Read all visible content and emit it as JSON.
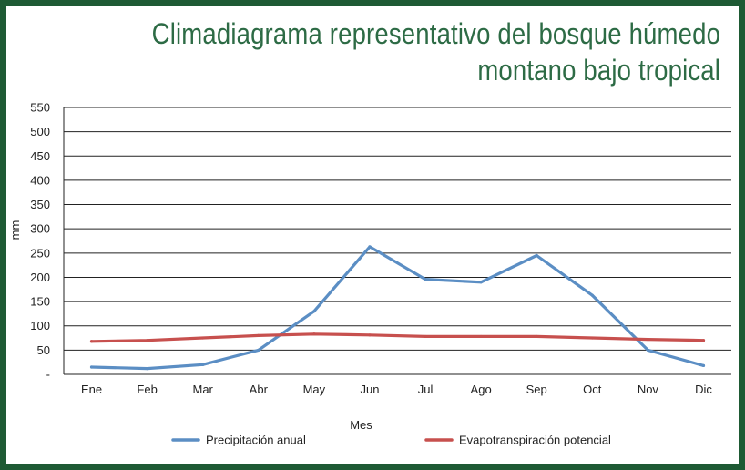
{
  "colors": {
    "frame": "#1e5a34",
    "title": "#2d6b45",
    "precipitation": "#5b8ec4",
    "evapotranspiration": "#c7504e",
    "grid": "#222222"
  },
  "chart_data": {
    "type": "line",
    "title_lines": [
      "Climadiagrama representativo del bosque húmedo",
      "montano bajo tropical"
    ],
    "xlabel": "Mes",
    "ylabel": "mm",
    "categories": [
      "Ene",
      "Feb",
      "Mar",
      "Abr",
      "May",
      "Jun",
      "Jul",
      "Ago",
      "Sep",
      "Oct",
      "Nov",
      "Dic"
    ],
    "y_ticks": [
      "-",
      "50",
      "100",
      "150",
      "200",
      "250",
      "300",
      "350",
      "400",
      "450",
      "500",
      "550"
    ],
    "ylim": [
      0,
      550
    ],
    "grid": true,
    "legend_position": "bottom",
    "series": [
      {
        "name": "Precipitación anual",
        "color_key": "precipitation",
        "values": [
          15,
          12,
          20,
          50,
          130,
          263,
          196,
          190,
          245,
          163,
          50,
          18
        ]
      },
      {
        "name": "Evapotranspiración potencial",
        "color_key": "evapotranspiration",
        "values": [
          68,
          70,
          75,
          80,
          83,
          81,
          78,
          78,
          78,
          75,
          72,
          70
        ]
      }
    ]
  }
}
